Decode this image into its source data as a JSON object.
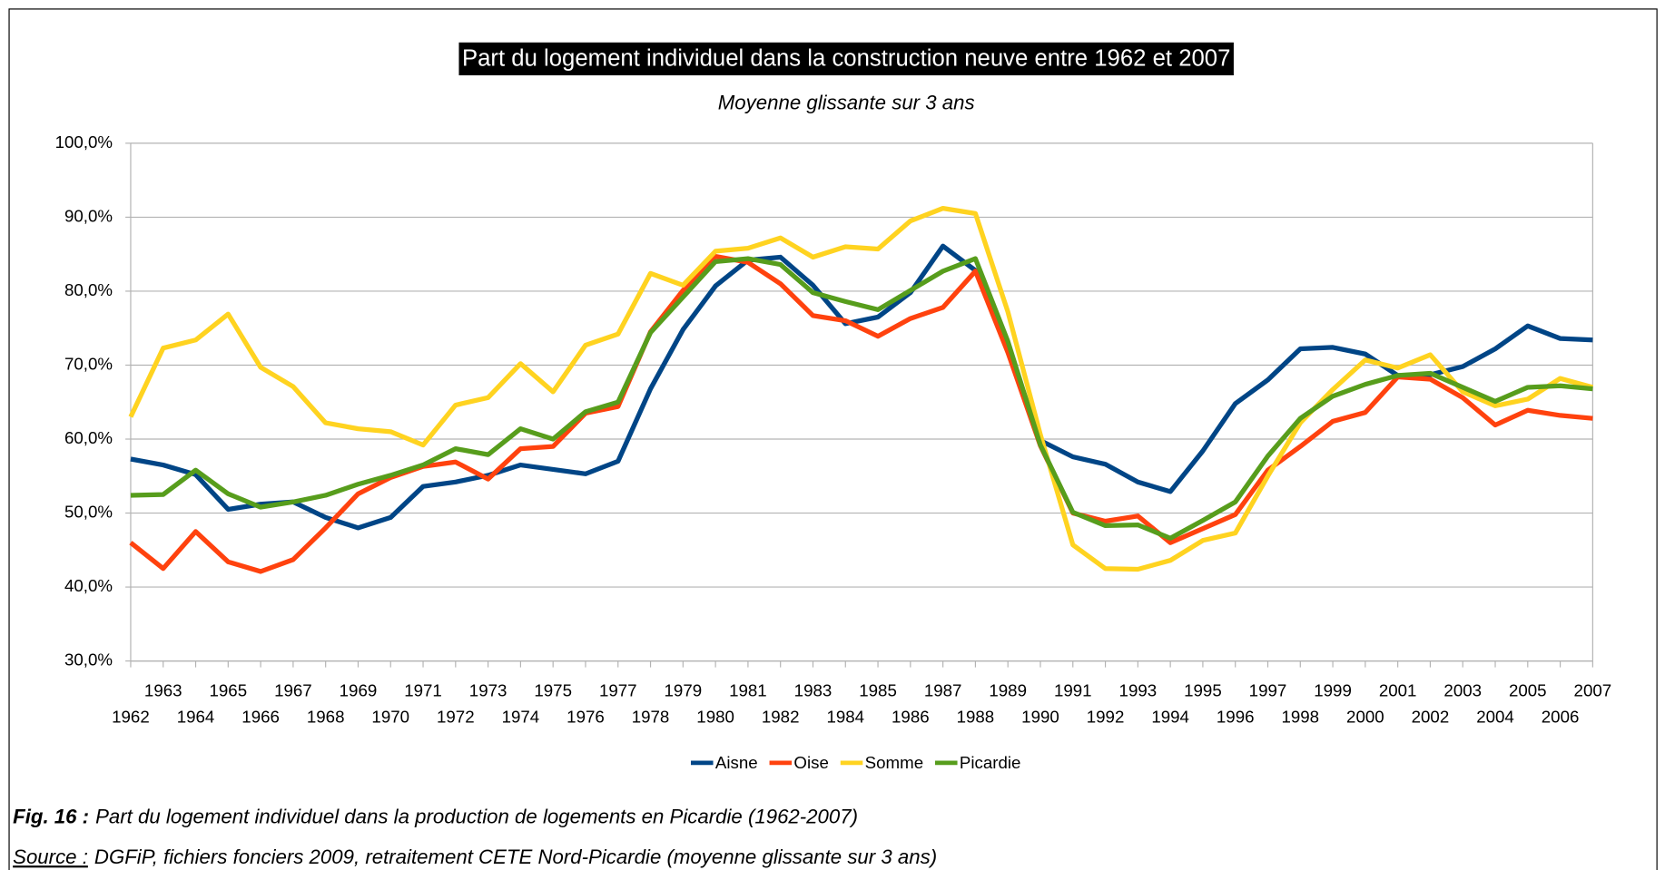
{
  "chart_data": {
    "type": "line",
    "title": "Part du logement individuel dans la construction neuve entre 1962 et 2007",
    "subtitle": "Moyenne glissante sur 3 ans",
    "x": [
      1962,
      1963,
      1964,
      1965,
      1966,
      1967,
      1968,
      1969,
      1970,
      1971,
      1972,
      1973,
      1974,
      1975,
      1976,
      1977,
      1978,
      1979,
      1980,
      1981,
      1982,
      1983,
      1984,
      1985,
      1986,
      1987,
      1988,
      1989,
      1990,
      1991,
      1992,
      1993,
      1994,
      1995,
      1996,
      1997,
      1998,
      1999,
      2000,
      2001,
      2002,
      2003,
      2004,
      2005,
      2006,
      2007
    ],
    "xlim": [
      1962,
      2007
    ],
    "ylim": [
      30,
      100
    ],
    "yticks": [
      {
        "value": 30,
        "label": "30,0%"
      },
      {
        "value": 40,
        "label": "40,0%"
      },
      {
        "value": 50,
        "label": "50,0%"
      },
      {
        "value": 60,
        "label": "60,0%"
      },
      {
        "value": 70,
        "label": "70,0%"
      },
      {
        "value": 80,
        "label": "80,0%"
      },
      {
        "value": 90,
        "label": "90,0%"
      },
      {
        "value": 100,
        "label": "100,0%"
      }
    ],
    "grid": true,
    "legend": "bottom",
    "series": [
      {
        "name": "Aisne",
        "color": "#004586",
        "values": [
          57.3,
          56.5,
          55.2,
          50.5,
          51.2,
          51.5,
          49.4,
          48.0,
          49.4,
          53.6,
          54.2,
          55.1,
          56.5,
          55.9,
          55.3,
          57.0,
          66.8,
          74.8,
          80.7,
          84.2,
          84.6,
          80.8,
          75.6,
          76.5,
          79.8,
          86.1,
          82.8,
          72.5,
          59.8,
          57.6,
          56.6,
          54.2,
          52.9,
          58.4,
          64.8,
          68.0,
          72.2,
          72.4,
          71.5,
          68.6,
          68.7,
          69.8,
          72.2,
          75.3,
          73.6,
          73.4
        ]
      },
      {
        "name": "Oise",
        "color": "#ff420e",
        "values": [
          46.0,
          42.5,
          47.5,
          43.4,
          42.1,
          43.7,
          48.0,
          52.6,
          54.8,
          56.3,
          56.9,
          54.6,
          58.7,
          59.0,
          63.5,
          64.4,
          74.5,
          80.1,
          84.7,
          83.9,
          81.0,
          76.7,
          76.0,
          73.9,
          76.3,
          77.8,
          82.7,
          71.7,
          59.1,
          50.0,
          48.9,
          49.6,
          46.0,
          47.9,
          49.8,
          55.8,
          59.0,
          62.4,
          63.6,
          68.4,
          68.1,
          65.6,
          61.9,
          63.9,
          63.2,
          62.8
        ]
      },
      {
        "name": "Somme",
        "color": "#ffd320",
        "values": [
          63.0,
          72.3,
          73.4,
          76.9,
          69.7,
          67.1,
          62.2,
          61.4,
          61.0,
          59.2,
          64.6,
          65.6,
          70.2,
          66.4,
          72.7,
          74.2,
          82.4,
          80.8,
          85.4,
          85.8,
          87.2,
          84.6,
          86.0,
          85.7,
          89.5,
          91.2,
          90.5,
          77.2,
          60.6,
          45.7,
          42.5,
          42.4,
          43.6,
          46.3,
          47.3,
          55.0,
          62.2,
          66.7,
          70.7,
          69.6,
          71.4,
          66.4,
          64.5,
          65.4,
          68.2,
          67.0
        ]
      },
      {
        "name": "Picardie",
        "color": "#579d1c",
        "values": [
          52.4,
          52.5,
          55.8,
          52.6,
          50.8,
          51.5,
          52.4,
          53.9,
          55.1,
          56.5,
          58.7,
          57.9,
          61.4,
          60.0,
          63.7,
          65.0,
          74.4,
          79.2,
          84.0,
          84.4,
          83.6,
          79.8,
          78.6,
          77.5,
          80.1,
          82.7,
          84.4,
          73.2,
          59.2,
          50.1,
          48.3,
          48.4,
          46.6,
          49.0,
          51.5,
          57.7,
          62.8,
          65.8,
          67.4,
          68.6,
          68.9,
          67.0,
          65.1,
          67.0,
          67.2,
          66.8
        ]
      }
    ]
  },
  "caption": {
    "label": "Fig. 16 :",
    "text": "Part du logement individuel dans la production de logements en Picardie (1962-2007)"
  },
  "source": {
    "label": "Source :",
    "text": "DGFiP, fichiers fonciers 2009, retraitement CETE Nord-Picardie (moyenne glissante sur 3 ans)"
  }
}
